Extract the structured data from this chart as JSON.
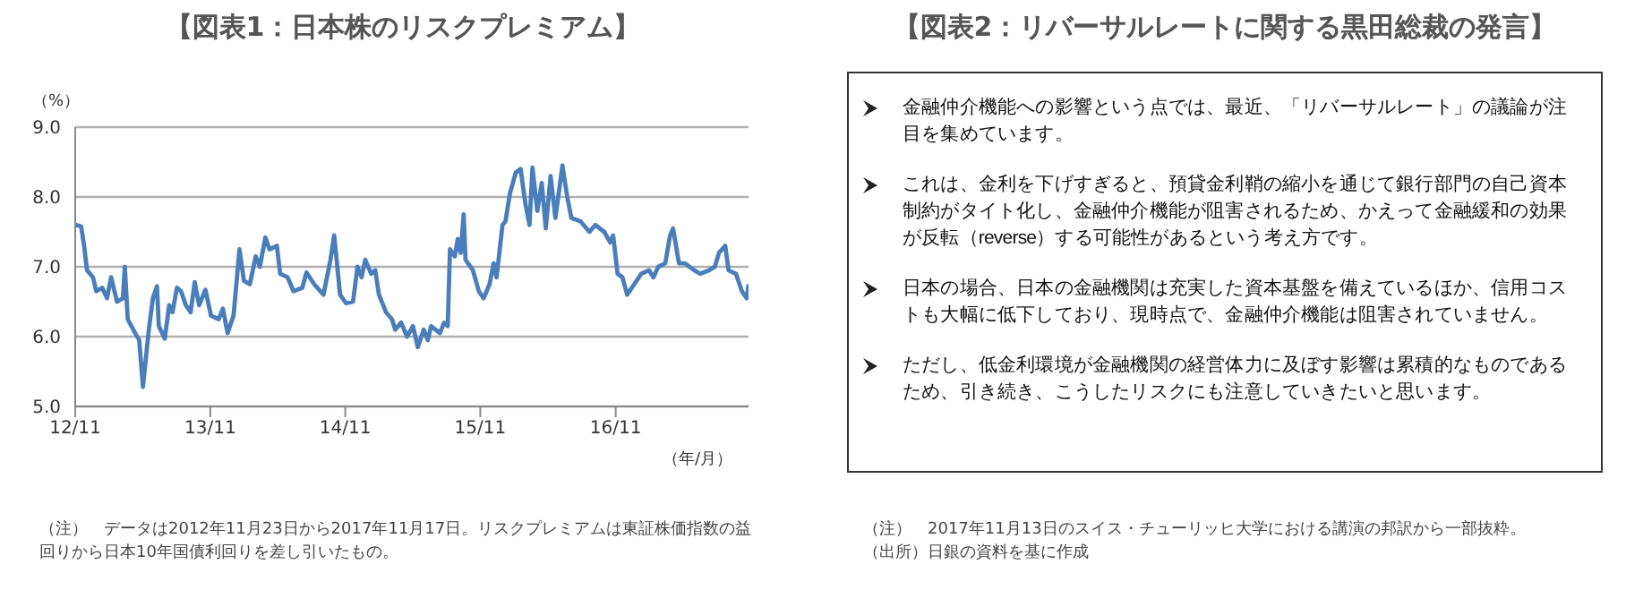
{
  "chart_data": [
    {
      "type": "line",
      "title": "【図表1：日本株のリスクプレミアム】",
      "ylabel": "（%）",
      "xlabel": "（年/月）",
      "x": [
        "2012-11-23",
        "2012-12-09",
        "2012-12-17",
        "2012-12-25",
        "2013-01-10",
        "2013-01-19",
        "2013-02-04",
        "2013-02-17",
        "2013-02-28",
        "2013-03-16",
        "2013-04-01",
        "2013-04-06",
        "2013-04-14",
        "2013-05-04",
        "2013-05-15",
        "2013-05-25",
        "2013-06-10",
        "2013-06-21",
        "2013-07-02",
        "2013-07-07",
        "2013-07-23",
        "2013-08-04",
        "2013-08-13",
        "2013-08-25",
        "2013-09-05",
        "2013-09-18",
        "2013-10-01",
        "2013-10-12",
        "2013-10-24",
        "2013-11-10",
        "2013-11-25",
        "2013-12-16",
        "2013-12-27",
        "2014-01-09",
        "2014-01-25",
        "2014-02-10",
        "2014-02-22",
        "2014-03-10",
        "2014-03-26",
        "2014-04-06",
        "2014-04-21",
        "2014-05-02",
        "2014-05-22",
        "2014-05-31",
        "2014-06-20",
        "2014-07-06",
        "2014-07-30",
        "2014-08-10",
        "2014-08-31",
        "2014-09-25",
        "2014-10-14",
        "2014-10-24",
        "2014-11-09",
        "2014-11-25",
        "2014-12-14",
        "2014-12-26",
        "2015-01-06",
        "2015-01-16",
        "2015-02-01",
        "2015-02-12",
        "2015-02-22",
        "2015-03-13",
        "2015-03-29",
        "2015-04-07",
        "2015-04-23",
        "2015-05-09",
        "2015-05-25",
        "2015-06-07",
        "2015-06-23",
        "2015-07-04",
        "2015-07-13",
        "2015-08-06",
        "2015-08-17",
        "2015-08-27",
        "2015-09-02",
        "2015-09-15",
        "2015-09-23",
        "2015-10-01",
        "2015-10-09",
        "2015-10-14",
        "2015-11-03",
        "2015-11-19",
        "2015-12-02",
        "2015-12-18",
        "2015-12-29",
        "2016-01-06",
        "2016-01-22",
        "2016-01-30",
        "2016-02-11",
        "2016-02-27",
        "2016-03-11",
        "2016-03-24",
        "2016-04-04",
        "2016-04-12",
        "2016-04-25",
        "2016-05-07",
        "2016-05-18",
        "2016-05-31",
        "2016-06-13",
        "2016-07-02",
        "2016-07-15",
        "2016-07-26",
        "2016-08-20",
        "2016-09-13",
        "2016-09-29",
        "2016-10-23",
        "2016-11-08",
        "2016-11-16",
        "2016-11-28",
        "2016-12-11",
        "2016-12-24",
        "2017-01-12",
        "2017-01-31",
        "2017-02-21",
        "2017-03-05",
        "2017-03-18",
        "2017-04-06",
        "2017-04-19",
        "2017-04-27",
        "2017-05-13",
        "2017-05-29",
        "2017-06-23",
        "2017-07-09",
        "2017-08-02",
        "2017-08-18",
        "2017-08-29",
        "2017-09-15",
        "2017-09-24",
        "2017-10-14",
        "2017-10-30",
        "2017-11-12",
        "2017-11-17"
      ],
      "series": [
        {
          "color": "#4a7ebb",
          "values": [
            7.6,
            7.58,
            7.3,
            6.95,
            6.85,
            6.65,
            6.7,
            6.55,
            6.85,
            6.5,
            6.55,
            7.0,
            6.25,
            6.05,
            5.95,
            5.28,
            6.1,
            6.55,
            6.72,
            6.15,
            5.97,
            6.45,
            6.35,
            6.7,
            6.65,
            6.45,
            6.35,
            6.78,
            6.45,
            6.67,
            6.3,
            6.25,
            6.4,
            6.05,
            6.3,
            7.25,
            6.8,
            6.75,
            7.15,
            7.0,
            7.42,
            7.25,
            7.3,
            6.9,
            6.85,
            6.65,
            6.7,
            6.92,
            6.75,
            6.6,
            7.1,
            7.45,
            6.6,
            6.48,
            6.5,
            7.0,
            6.85,
            7.1,
            6.9,
            6.95,
            6.6,
            6.35,
            6.25,
            6.1,
            6.2,
            6.0,
            6.15,
            5.85,
            6.1,
            5.95,
            6.15,
            6.05,
            6.2,
            6.15,
            7.25,
            7.15,
            7.4,
            7.2,
            7.75,
            7.1,
            6.95,
            6.65,
            6.55,
            6.75,
            7.05,
            6.85,
            7.6,
            7.65,
            8.05,
            8.35,
            8.4,
            7.9,
            7.6,
            8.42,
            7.8,
            8.2,
            7.55,
            8.3,
            7.7,
            8.45,
            8.0,
            7.7,
            7.65,
            7.5,
            7.6,
            7.5,
            7.35,
            7.45,
            6.9,
            6.85,
            6.6,
            6.75,
            6.9,
            6.95,
            6.85,
            7.0,
            7.05,
            7.45,
            7.55,
            7.05,
            7.05,
            6.95,
            6.9,
            6.95,
            7.0,
            7.2,
            7.3,
            6.95,
            6.9,
            6.65,
            6.55,
            6.75
          ]
        }
      ],
      "xlim": [
        "2012-11-23",
        "2017-11-17"
      ],
      "xticks": [
        {
          "value": "2012-11-23",
          "label": "12/11"
        },
        {
          "value": "2013-11-23",
          "label": "13/11"
        },
        {
          "value": "2014-11-23",
          "label": "14/11"
        },
        {
          "value": "2015-11-23",
          "label": "15/11"
        },
        {
          "value": "2016-11-23",
          "label": "16/11"
        }
      ],
      "ylim": [
        5,
        9
      ],
      "yticks": [
        {
          "value": 5,
          "label": "5.0"
        },
        {
          "value": 6,
          "label": "6.0"
        },
        {
          "value": 7,
          "label": "7.0"
        },
        {
          "value": 8,
          "label": "8.0"
        },
        {
          "value": 9,
          "label": "9.0"
        }
      ],
      "grid": "y",
      "annotations": [
        "（注）　データは2012年11月23日から2017年11月17日。リスクプレミアムは東証株価指数の益回りから日本10年国債利回りを差し引いたもの。"
      ]
    },
    {
      "type": "other",
      "title": "【図表2：リバーサルレートに関する黒田総裁の発言】",
      "annotations": [
        "金融仲介機能への影響という点では、最近、「リバーサルレート」の議論が注目を集めています。",
        "これは、金利を下げすぎると、預貸金利鞘の縮小を通じて銀行部門の自己資本制約がタイト化し、金融仲介機能が阻害されるため、かえって金融緩和の効果が反転（reverse）する可能性があるという考え方です。",
        "日本の場合、日本の金融機関は充実した資本基盤を備えているほか、信用コストも大幅に低下しており、現時点で、金融仲介機能は阻害されていません。",
        "ただし、低金利環境が金融機関の経営体力に及ぼす影響は累積的なものであるため、引き続き、こうしたリスクにも注意していきたいと思います。",
        "（注）　2017年11月13日のスイス・チューリッヒ大学における講演の邦訳から一部抜粋。",
        "（出所）日銀の資料を基に作成"
      ]
    }
  ]
}
